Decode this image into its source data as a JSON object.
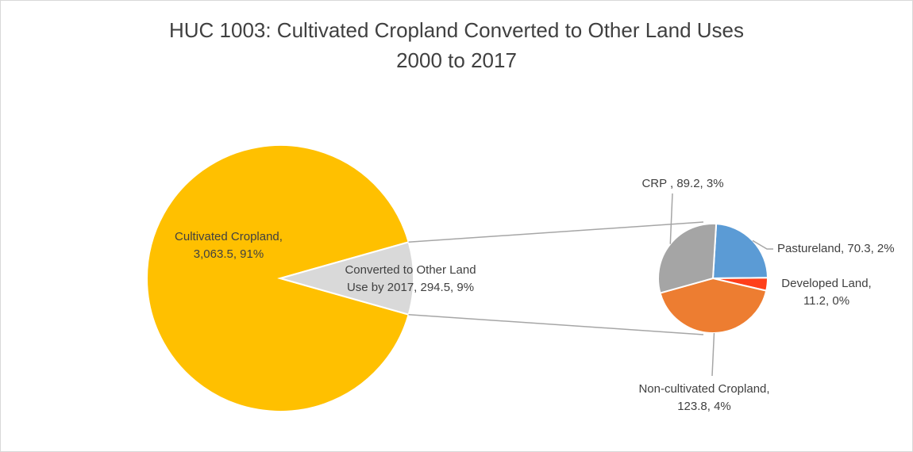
{
  "chart_data": {
    "type": "pie",
    "subtype": "pie-of-pie",
    "title": "HUC 1003: Cultivated Cropland Converted to Other Land Uses",
    "subtitle": "2000 to 2017",
    "main_pie": {
      "slices": [
        {
          "label_lines": [
            "Cultivated Cropland,",
            "3,063.5, 91%"
          ],
          "value": 3063.5,
          "percent": 91,
          "color": "#FFC000"
        },
        {
          "label_lines": [
            "Converted to Other Land",
            "Use by 2017, 294.5, 9%"
          ],
          "value": 294.5,
          "percent": 9,
          "color": "#D9D9D9"
        }
      ]
    },
    "secondary_pie": {
      "slices": [
        {
          "label_lines": [
            "Pastureland, 70.3, 2%"
          ],
          "value": 70.3,
          "percent": 2,
          "color": "#5B9BD5"
        },
        {
          "label_lines": [
            "Developed Land,",
            "11.2, 0%"
          ],
          "value": 11.2,
          "percent": 0,
          "color": "#FF3F1A"
        },
        {
          "label_lines": [
            "Non-cultivated Cropland,",
            "123.8, 4%"
          ],
          "value": 123.8,
          "percent": 4,
          "color": "#ED7D31"
        },
        {
          "label_lines": [
            "CRP , 89.2, 3%"
          ],
          "value": 89.2,
          "percent": 3,
          "color": "#A5A5A5"
        }
      ]
    }
  }
}
